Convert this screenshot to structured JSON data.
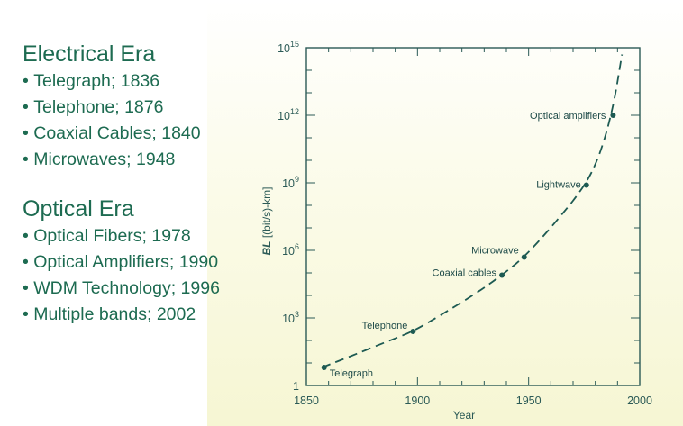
{
  "electrical": {
    "title": "Electrical Era",
    "items": [
      "Telegraph; 1836",
      "Telephone; 1876",
      "Coaxial Cables; 1840",
      "Microwaves; 1948"
    ]
  },
  "optical": {
    "title": "Optical Era",
    "items": [
      "Optical Fibers; 1978",
      "Optical Amplifiers; 1990",
      "WDM Technology; 1996",
      "Multiple bands; 2002"
    ]
  },
  "chart_data": {
    "type": "line",
    "title": "",
    "xlabel": "Year",
    "ylabel": "BL [(bit/s)-km]",
    "xlim": [
      1850,
      2000
    ],
    "ylim_log10": [
      0,
      15
    ],
    "log_y": true,
    "grid": false,
    "x_ticks": [
      "1850",
      "1900",
      "1950",
      "2000"
    ],
    "y_ticks": [
      {
        "base": "1",
        "exp": ""
      },
      {
        "base": "10",
        "exp": "3"
      },
      {
        "base": "10",
        "exp": "6"
      },
      {
        "base": "10",
        "exp": "9"
      },
      {
        "base": "10",
        "exp": "12"
      },
      {
        "base": "10",
        "exp": "15"
      }
    ],
    "curve": {
      "x": [
        1857,
        1870,
        1885,
        1898,
        1910,
        1925,
        1938,
        1948,
        1960,
        1975,
        1982,
        1988,
        1992
      ],
      "log10_y": [
        0.8,
        1.3,
        1.9,
        2.4,
        3.1,
        4.0,
        4.9,
        5.7,
        7.0,
        8.8,
        10.2,
        12.3,
        14.7
      ],
      "style": "dashed"
    },
    "points": [
      {
        "label": "Telegraph",
        "x": 1858,
        "log10_y": 0.8
      },
      {
        "label": "Telephone",
        "x": 1898,
        "log10_y": 2.4
      },
      {
        "label": "Coaxial cables",
        "x": 1938,
        "log10_y": 4.9
      },
      {
        "label": "Microwave",
        "x": 1948,
        "log10_y": 5.7
      },
      {
        "label": "Lightwave",
        "x": 1976,
        "log10_y": 8.9
      },
      {
        "label": "Optical amplifiers",
        "x": 1988,
        "log10_y": 12.0
      }
    ],
    "colors": {
      "axis": "#2b5a56",
      "curve": "#1d5a52",
      "text": "#1d6b51"
    }
  }
}
